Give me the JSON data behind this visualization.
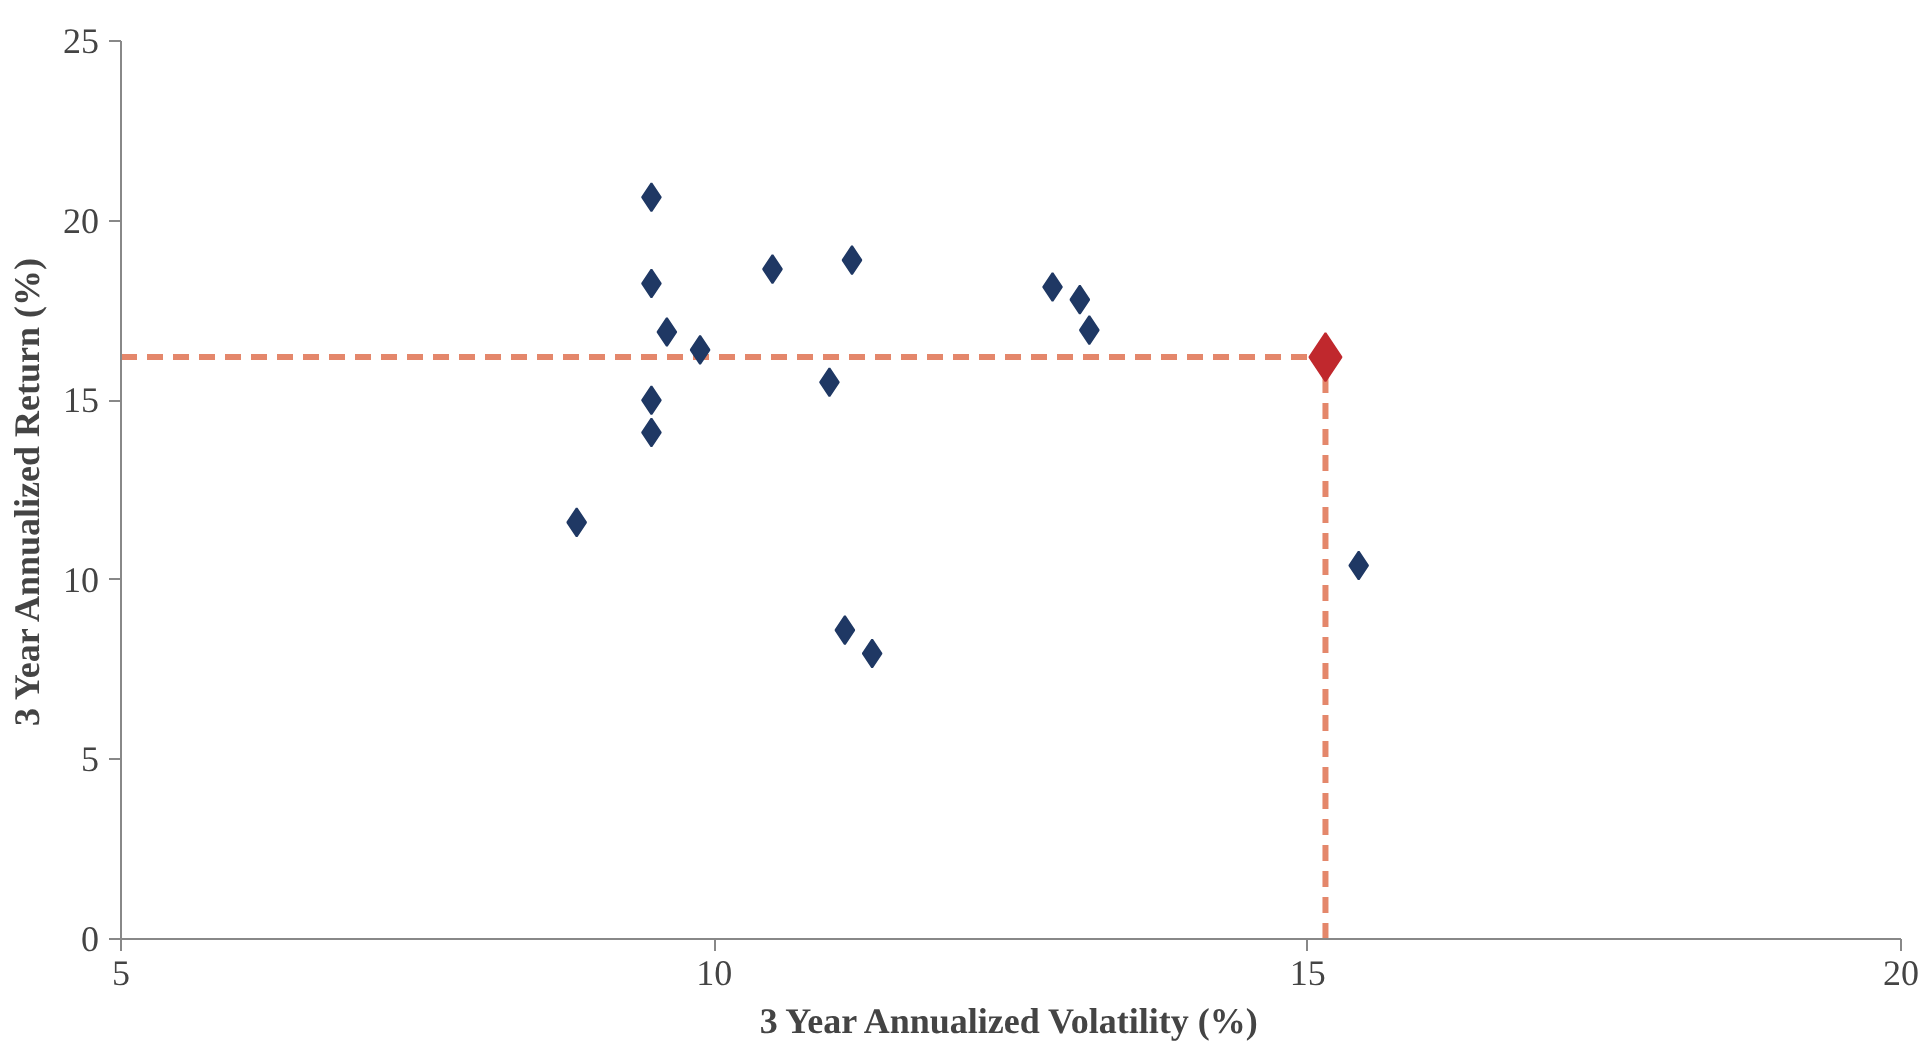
{
  "chart_data": {
    "type": "scatter",
    "xlabel": "3 Year Annualized Volatility (%)",
    "ylabel": "3 Year Annualized Return (%)",
    "xlim": [
      5,
      20
    ],
    "xticks": [
      5,
      10,
      15,
      20
    ],
    "ylim": [
      0,
      25
    ],
    "yticks": [
      0,
      5,
      10,
      15,
      20,
      25
    ],
    "grid": false,
    "marker": "diamond",
    "series": [
      {
        "color": "#1f3864",
        "x": [
          8.84,
          9.47,
          9.47,
          9.47,
          9.47,
          9.6,
          9.88,
          10.49,
          10.97,
          11.16,
          11.1,
          11.33,
          12.85,
          13.08,
          13.16,
          15.43
        ],
        "values": [
          11.6,
          20.65,
          18.25,
          15.0,
          14.1,
          16.9,
          16.4,
          18.65,
          15.5,
          18.9,
          8.6,
          7.95,
          18.15,
          17.8,
          16.95,
          10.4
        ]
      },
      {
        "color": "#c0282d",
        "x": [
          15.15
        ],
        "values": [
          16.2
        ]
      }
    ],
    "ref_lines": [
      {
        "axis": "y",
        "value": 16.2,
        "color": "#e4876b",
        "line_style": "dashed"
      },
      {
        "axis": "x",
        "value": 15.15,
        "color": "#e4876b",
        "line_style": "dashed"
      }
    ]
  }
}
